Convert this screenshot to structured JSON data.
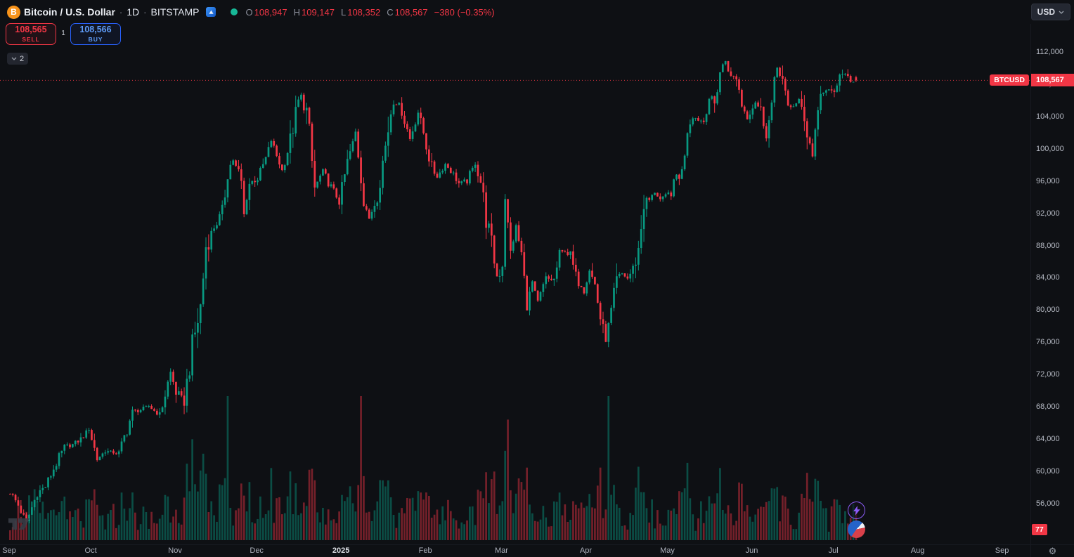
{
  "header": {
    "symbol_title": "Bitcoin / U.S. Dollar",
    "sep": "·",
    "interval": "1D",
    "exchange": "BITSTAMP",
    "ohlc": {
      "o_label": "O",
      "o": "108,947",
      "h_label": "H",
      "h": "109,147",
      "l_label": "L",
      "l": "108,352",
      "c_label": "C",
      "c": "108,567",
      "change": "−380 (−0.35%)"
    },
    "currency_button": "USD"
  },
  "trade_panel": {
    "sell_price": "108,565",
    "sell_label": "SELL",
    "spread": "1",
    "buy_price": "108,566",
    "buy_label": "BUY"
  },
  "toolbar": {
    "collapse_count": "2"
  },
  "price_axis": {
    "symbol_badge": "BTCUSD",
    "price_badge": "108,567",
    "volume_badge": "77",
    "ticks": [
      {
        "label": "112,000",
        "v": 112000
      },
      {
        "label": "108,000",
        "v": 108000
      },
      {
        "label": "104,000",
        "v": 104000
      },
      {
        "label": "100,000",
        "v": 100000
      },
      {
        "label": "96,000",
        "v": 96000
      },
      {
        "label": "92,000",
        "v": 92000
      },
      {
        "label": "88,000",
        "v": 88000
      },
      {
        "label": "84,000",
        "v": 84000
      },
      {
        "label": "80,000",
        "v": 80000
      },
      {
        "label": "76,000",
        "v": 76000
      },
      {
        "label": "72,000",
        "v": 72000
      },
      {
        "label": "68,000",
        "v": 68000
      },
      {
        "label": "64,000",
        "v": 64000
      },
      {
        "label": "60,000",
        "v": 60000
      },
      {
        "label": "56,000",
        "v": 56000
      }
    ]
  },
  "time_axis": {
    "labels": [
      {
        "t": "Sep",
        "d": 0
      },
      {
        "t": "Oct",
        "d": 30
      },
      {
        "t": "Nov",
        "d": 61
      },
      {
        "t": "Dec",
        "d": 91
      },
      {
        "t": "2025",
        "d": 122,
        "year": true
      },
      {
        "t": "Feb",
        "d": 153
      },
      {
        "t": "Mar",
        "d": 181
      },
      {
        "t": "Apr",
        "d": 212
      },
      {
        "t": "May",
        "d": 242
      },
      {
        "t": "Jun",
        "d": 273
      },
      {
        "t": "Jul",
        "d": 303
      },
      {
        "t": "Aug",
        "d": 334
      },
      {
        "t": "Sep",
        "d": 365
      }
    ]
  },
  "colors": {
    "up": "#089981",
    "down": "#f23645",
    "buy_blue": "#2962ff",
    "bitcoin_orange": "#f7931a",
    "badge_red": "#f23645",
    "axis_text": "#b6bac4"
  },
  "chart_data": {
    "type": "candlestick",
    "symbol": "BTCUSD",
    "exchange": "BITSTAMP",
    "interval": "1D",
    "title": "Bitcoin / U.S. Dollar",
    "x_range": {
      "start": "Sep 2024",
      "end": "Sep 2025",
      "last_bar": "Jul 2025"
    },
    "y_axis": {
      "min": 53000,
      "max": 118000,
      "tick_step": 4000
    },
    "grid": false,
    "legend_position": "none",
    "last": {
      "open": 108947,
      "high": 109147,
      "low": 108352,
      "close": 108567,
      "change": -380,
      "change_pct": -0.35
    },
    "price_line": 108567,
    "days": 311,
    "price_waypoints": [
      [
        0,
        57500
      ],
      [
        3,
        55900
      ],
      [
        6,
        53800
      ],
      [
        10,
        57400
      ],
      [
        13,
        58200
      ],
      [
        16,
        60400
      ],
      [
        20,
        63100
      ],
      [
        23,
        63400
      ],
      [
        26,
        64100
      ],
      [
        29,
        65500
      ],
      [
        32,
        61600
      ],
      [
        35,
        62600
      ],
      [
        40,
        62300
      ],
      [
        45,
        67400
      ],
      [
        48,
        67700
      ],
      [
        51,
        68200
      ],
      [
        55,
        67000
      ],
      [
        59,
        72400
      ],
      [
        61,
        69900
      ],
      [
        64,
        68800
      ],
      [
        67,
        75600
      ],
      [
        70,
        80400
      ],
      [
        72,
        88000
      ],
      [
        75,
        90400
      ],
      [
        78,
        91900
      ],
      [
        80,
        97400
      ],
      [
        82,
        98700
      ],
      [
        85,
        95900
      ],
      [
        86,
        91900
      ],
      [
        88,
        95800
      ],
      [
        91,
        96400
      ],
      [
        94,
        98800
      ],
      [
        96,
        101100
      ],
      [
        100,
        97400
      ],
      [
        103,
        101100
      ],
      [
        106,
        106000
      ],
      [
        107,
        106700
      ],
      [
        109,
        104600
      ],
      [
        112,
        95200
      ],
      [
        115,
        97400
      ],
      [
        118,
        95300
      ],
      [
        121,
        93500
      ],
      [
        124,
        98300
      ],
      [
        127,
        102100
      ],
      [
        130,
        94300
      ],
      [
        132,
        91200
      ],
      [
        135,
        94600
      ],
      [
        138,
        100400
      ],
      [
        140,
        104700
      ],
      [
        141,
        106100
      ],
      [
        144,
        104800
      ],
      [
        147,
        101300
      ],
      [
        150,
        104600
      ],
      [
        152,
        102100
      ],
      [
        155,
        97700
      ],
      [
        157,
        96600
      ],
      [
        160,
        98200
      ],
      [
        162,
        97400
      ],
      [
        165,
        95800
      ],
      [
        168,
        96100
      ],
      [
        171,
        98300
      ],
      [
        173,
        96100
      ],
      [
        175,
        91500
      ],
      [
        177,
        88100
      ],
      [
        179,
        84300
      ],
      [
        181,
        86000
      ],
      [
        182,
        94100
      ],
      [
        184,
        87200
      ],
      [
        186,
        90500
      ],
      [
        188,
        86800
      ],
      [
        190,
        80700
      ],
      [
        192,
        83600
      ],
      [
        194,
        81100
      ],
      [
        197,
        84000
      ],
      [
        200,
        83800
      ],
      [
        202,
        86900
      ],
      [
        204,
        87400
      ],
      [
        206,
        86800
      ],
      [
        208,
        84200
      ],
      [
        211,
        82500
      ],
      [
        213,
        85100
      ],
      [
        215,
        83200
      ],
      [
        217,
        79200
      ],
      [
        219,
        76300
      ],
      [
        221,
        79600
      ],
      [
        223,
        83700
      ],
      [
        225,
        84600
      ],
      [
        227,
        84000
      ],
      [
        229,
        85200
      ],
      [
        231,
        87500
      ],
      [
        233,
        93300
      ],
      [
        235,
        93700
      ],
      [
        237,
        94700
      ],
      [
        239,
        93800
      ],
      [
        241,
        94200
      ],
      [
        243,
        94700
      ],
      [
        245,
        96800
      ],
      [
        247,
        97000
      ],
      [
        249,
        102900
      ],
      [
        251,
        104100
      ],
      [
        253,
        103700
      ],
      [
        255,
        103500
      ],
      [
        257,
        106400
      ],
      [
        259,
        105600
      ],
      [
        261,
        109700
      ],
      [
        263,
        111000
      ],
      [
        265,
        108900
      ],
      [
        267,
        109000
      ],
      [
        269,
        105700
      ],
      [
        271,
        103900
      ],
      [
        272,
        104600
      ],
      [
        274,
        105900
      ],
      [
        276,
        104800
      ],
      [
        278,
        101600
      ],
      [
        280,
        105400
      ],
      [
        282,
        110200
      ],
      [
        284,
        108600
      ],
      [
        286,
        104900
      ],
      [
        288,
        105500
      ],
      [
        290,
        106100
      ],
      [
        292,
        103300
      ],
      [
        294,
        100900
      ],
      [
        295,
        99200
      ],
      [
        297,
        105600
      ],
      [
        299,
        107300
      ],
      [
        301,
        107300
      ],
      [
        303,
        107100
      ],
      [
        305,
        108900
      ],
      [
        307,
        109600
      ],
      [
        309,
        108100
      ],
      [
        311,
        108567
      ]
    ],
    "volume_spikes": [
      [
        80,
        4.5
      ],
      [
        96,
        3.4
      ],
      [
        129,
        3.0
      ],
      [
        183,
        2.4
      ],
      [
        220,
        2.2
      ]
    ]
  }
}
